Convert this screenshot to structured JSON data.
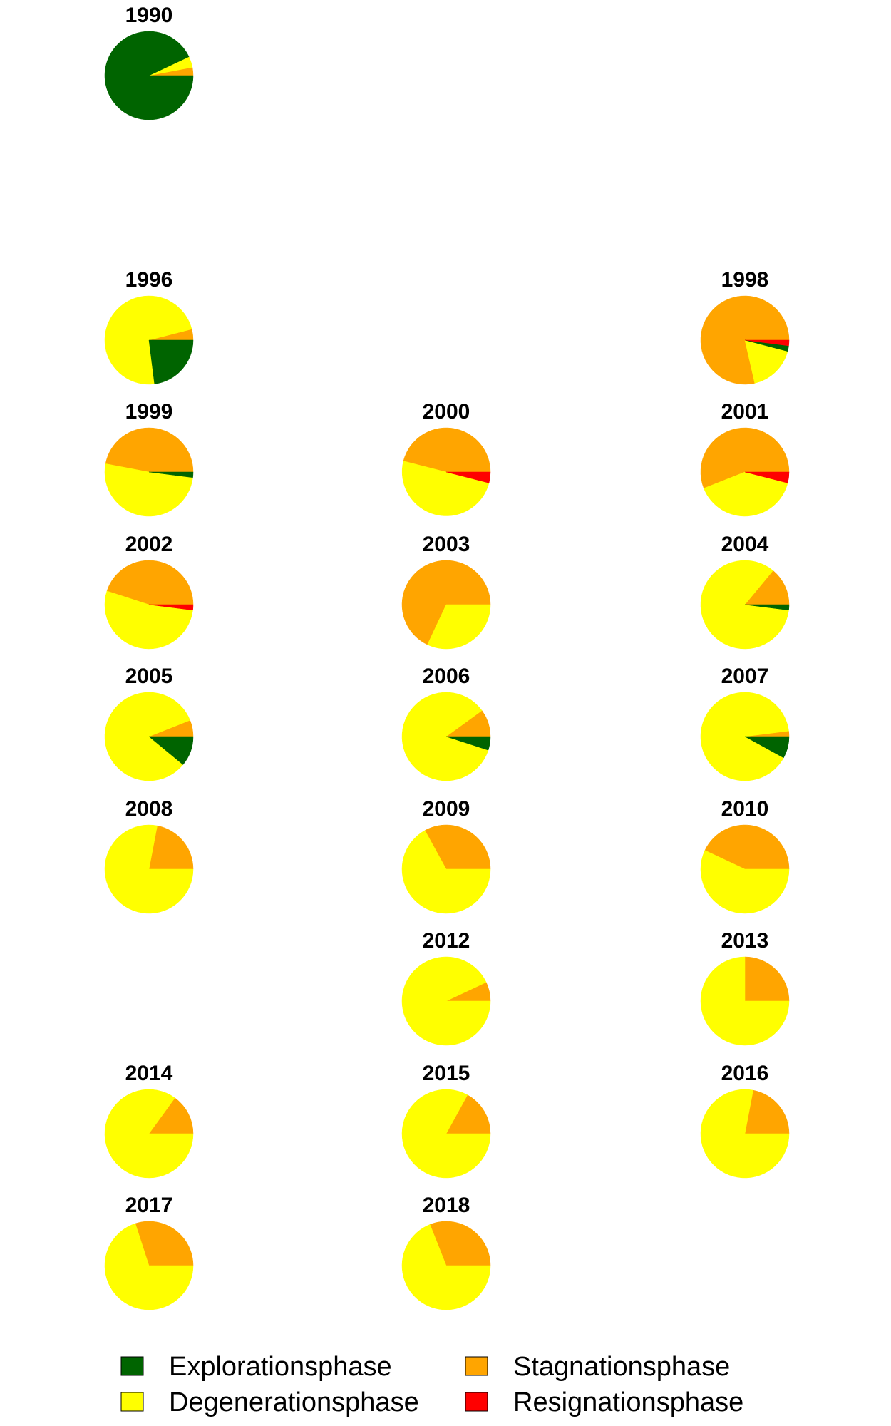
{
  "chart_data": {
    "type": "pie",
    "legend_position": "bottom",
    "phases": [
      {
        "key": "exp",
        "label": "Explorationsphase",
        "color": "#006400"
      },
      {
        "key": "deg",
        "label": "Degenerationsphase",
        "color": "#FFFF00"
      },
      {
        "key": "sta",
        "label": "Stagnationsphase",
        "color": "#FFA500"
      },
      {
        "key": "res",
        "label": "Resignationsphase",
        "color": "#FF0000"
      }
    ],
    "pies": [
      {
        "year": "1990",
        "values": {
          "sta": 3,
          "deg": 4,
          "exp": 93,
          "res": 0
        }
      },
      {
        "year": "1996",
        "values": {
          "sta": 4,
          "deg": 73,
          "exp": 23,
          "res": 0
        }
      },
      {
        "year": "1998",
        "values": {
          "sta": 77,
          "deg": 17,
          "exp": 2,
          "res": 2
        }
      },
      {
        "year": "1999",
        "values": {
          "sta": 47,
          "deg": 51,
          "exp": 2,
          "res": 0
        }
      },
      {
        "year": "2000",
        "values": {
          "sta": 46,
          "deg": 50,
          "exp": 0,
          "res": 4
        }
      },
      {
        "year": "2001",
        "values": {
          "sta": 56,
          "deg": 40,
          "exp": 0,
          "res": 4
        }
      },
      {
        "year": "2002",
        "values": {
          "sta": 45,
          "deg": 53,
          "exp": 0,
          "res": 2
        }
      },
      {
        "year": "2003",
        "values": {
          "sta": 68,
          "deg": 32,
          "exp": 0,
          "res": 0
        }
      },
      {
        "year": "2004",
        "values": {
          "sta": 14,
          "deg": 84,
          "exp": 2,
          "res": 0
        }
      },
      {
        "year": "2005",
        "values": {
          "sta": 6,
          "deg": 83,
          "exp": 11,
          "res": 0
        }
      },
      {
        "year": "2006",
        "values": {
          "sta": 10,
          "deg": 85,
          "exp": 5,
          "res": 0
        }
      },
      {
        "year": "2007",
        "values": {
          "sta": 2,
          "deg": 90,
          "exp": 8,
          "res": 0
        }
      },
      {
        "year": "2008",
        "values": {
          "sta": 22,
          "deg": 78,
          "exp": 0,
          "res": 0
        }
      },
      {
        "year": "2009",
        "values": {
          "sta": 33,
          "deg": 67,
          "exp": 0,
          "res": 0
        }
      },
      {
        "year": "2010",
        "values": {
          "sta": 43,
          "deg": 57,
          "exp": 0,
          "res": 0
        }
      },
      {
        "year": "2012",
        "values": {
          "sta": 7,
          "deg": 93,
          "exp": 0,
          "res": 0
        }
      },
      {
        "year": "2013",
        "values": {
          "sta": 25,
          "deg": 75,
          "exp": 0,
          "res": 0
        }
      },
      {
        "year": "2014",
        "values": {
          "sta": 15,
          "deg": 85,
          "exp": 0,
          "res": 0
        }
      },
      {
        "year": "2015",
        "values": {
          "sta": 17,
          "deg": 83,
          "exp": 0,
          "res": 0
        }
      },
      {
        "year": "2016",
        "values": {
          "sta": 22,
          "deg": 78,
          "exp": 0,
          "res": 0
        }
      },
      {
        "year": "2017",
        "values": {
          "sta": 30,
          "deg": 70,
          "exp": 0,
          "res": 0
        }
      },
      {
        "year": "2018",
        "values": {
          "sta": 31,
          "deg": 69,
          "exp": 0,
          "res": 0
        }
      }
    ]
  }
}
